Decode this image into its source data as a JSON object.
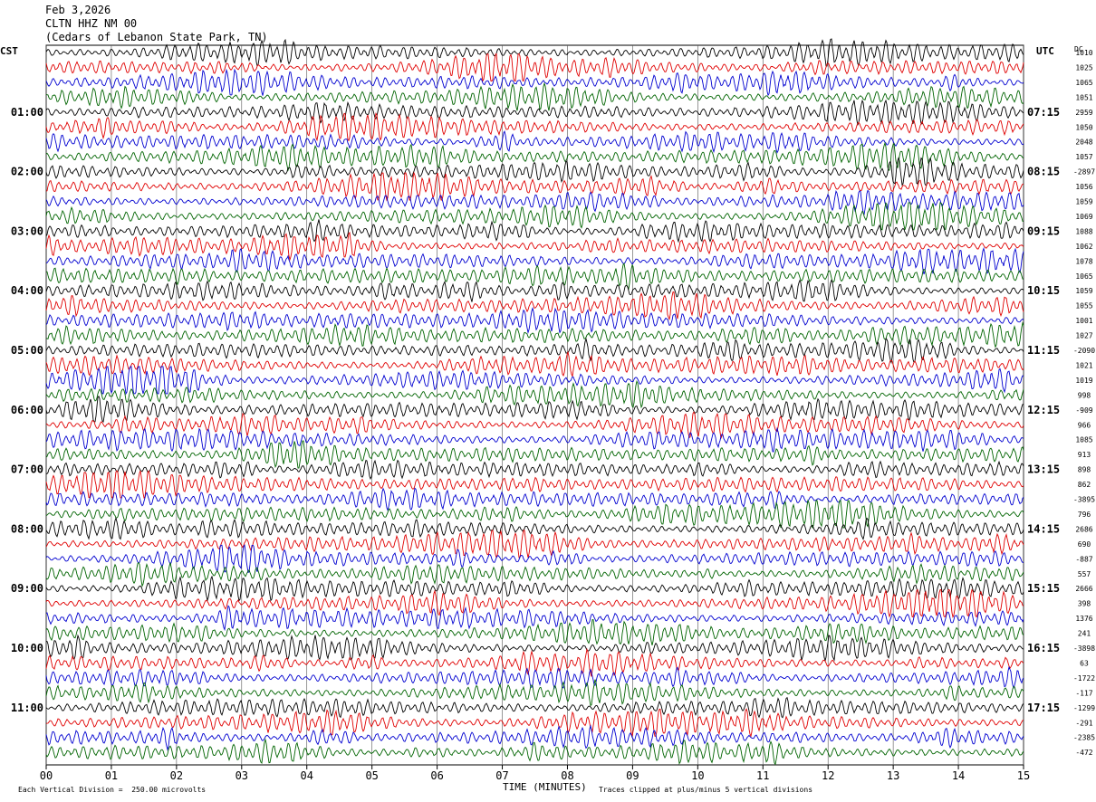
{
  "header": {
    "date": "Feb 3,2026",
    "station": "CLTN HHZ NM 00",
    "location": "(Cedars of Lebanon State Park, TN)"
  },
  "left_axis_label": "CST",
  "right_axis_label": "UTC",
  "dc_label": "DC",
  "footer": {
    "scale_note": "Each Vertical Division =  250.00 microvolts",
    "clip_note": "Traces clipped at plus/minus 5 vertical divisions"
  },
  "colors": {
    "black": "#000000",
    "red": "#e00000",
    "blue": "#0000d0",
    "green": "#006400",
    "grid": "#555555"
  },
  "chart_data": {
    "type": "line",
    "title": "CLTN HHZ NM 00",
    "xlabel": "TIME (MINUTES)",
    "xlim": [
      0,
      15
    ],
    "x_ticks": [
      "00",
      "01",
      "02",
      "03",
      "04",
      "05",
      "06",
      "07",
      "08",
      "09",
      "10",
      "11",
      "12",
      "13",
      "14",
      "15"
    ],
    "trace_minutes": 15,
    "trace_count": 48,
    "trace_color_cycle": [
      "black",
      "red",
      "blue",
      "green"
    ],
    "cst_hour_labels": [
      "01:00",
      "02:00",
      "03:00",
      "04:00",
      "05:00",
      "06:00",
      "07:00",
      "08:00",
      "09:00",
      "10:00",
      "11:00"
    ],
    "utc_hour_labels": [
      "07:15",
      "08:15",
      "09:15",
      "10:15",
      "11:15",
      "12:15",
      "13:15",
      "14:15",
      "15:15",
      "16:15",
      "17:15"
    ],
    "hour_label_trace_indices": [
      4,
      8,
      12,
      16,
      20,
      24,
      28,
      32,
      36,
      40,
      44
    ],
    "dc_offsets": [
      "1010",
      "1025",
      "1065",
      "1051",
      "2959",
      "1050",
      "2048",
      "1057",
      "-2897",
      "1056",
      "1059",
      "1069",
      "1088",
      "1062",
      "1078",
      "1065",
      "1059",
      "1055",
      "1001",
      "1027",
      "-2090",
      "1021",
      "1019",
      "998",
      "-909",
      "966",
      "1085",
      "913",
      "898",
      "862",
      "-3895",
      "796",
      "2686",
      "690",
      "-887",
      "557",
      "2666",
      "398",
      "1376",
      "241",
      "-3898",
      "63",
      "-1722",
      "-117",
      "-1299",
      "-291",
      "-2385",
      "-472"
    ],
    "scale_microvolts_per_division": 250.0,
    "clip_divisions": 5
  }
}
